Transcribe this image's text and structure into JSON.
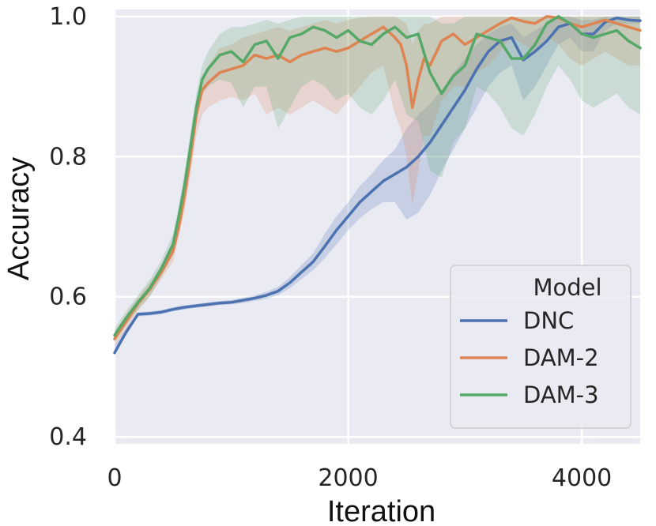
{
  "chart_data": {
    "type": "line",
    "xlabel": "Iteration",
    "ylabel": "Accuracy",
    "xlim": [
      0,
      4500
    ],
    "ylim": [
      0.39,
      1.01
    ],
    "xticks": [
      0,
      2000,
      4000
    ],
    "xtick_labels": [
      "0",
      "2000",
      "4000"
    ],
    "yticks": [
      0.4,
      0.6,
      0.8,
      1.0
    ],
    "ytick_labels": [
      "0.4",
      "0.6",
      "0.8",
      "1.0"
    ],
    "grid": true,
    "background": "#EAEAF2",
    "legend": {
      "title": "Model",
      "position": "bottom-right",
      "entries": [
        "DNC",
        "DAM-2",
        "DAM-3"
      ]
    },
    "series": [
      {
        "name": "DNC",
        "color": "#4C72B0",
        "x": [
          0,
          100,
          200,
          300,
          400,
          500,
          600,
          700,
          800,
          900,
          1000,
          1100,
          1200,
          1300,
          1400,
          1500,
          1600,
          1700,
          1800,
          1900,
          2000,
          2100,
          2200,
          2300,
          2400,
          2500,
          2600,
          2700,
          2800,
          2900,
          3000,
          3100,
          3200,
          3300,
          3400,
          3500,
          3600,
          3700,
          3800,
          3900,
          4000,
          4100,
          4200,
          4300,
          4400,
          4500
        ],
        "y": [
          0.52,
          0.55,
          0.575,
          0.576,
          0.578,
          0.582,
          0.585,
          0.587,
          0.589,
          0.591,
          0.592,
          0.595,
          0.598,
          0.602,
          0.608,
          0.62,
          0.635,
          0.65,
          0.672,
          0.695,
          0.715,
          0.735,
          0.75,
          0.765,
          0.775,
          0.785,
          0.8,
          0.82,
          0.845,
          0.87,
          0.895,
          0.925,
          0.95,
          0.965,
          0.97,
          0.938,
          0.95,
          0.965,
          0.985,
          0.99,
          0.975,
          0.975,
          0.992,
          0.998,
          0.995,
          0.994
        ],
        "band_lo": [
          0.52,
          0.545,
          0.572,
          0.573,
          0.575,
          0.579,
          0.582,
          0.584,
          0.586,
          0.588,
          0.589,
          0.591,
          0.594,
          0.597,
          0.602,
          0.612,
          0.625,
          0.638,
          0.655,
          0.675,
          0.695,
          0.712,
          0.725,
          0.735,
          0.735,
          0.71,
          0.72,
          0.745,
          0.78,
          0.81,
          0.84,
          0.87,
          0.9,
          0.92,
          0.93,
          0.88,
          0.9,
          0.93,
          0.96,
          0.97,
          0.95,
          0.95,
          0.98,
          0.99,
          0.99,
          0.99
        ],
        "band_hi": [
          0.53,
          0.555,
          0.578,
          0.579,
          0.581,
          0.585,
          0.588,
          0.59,
          0.592,
          0.594,
          0.595,
          0.599,
          0.602,
          0.607,
          0.614,
          0.628,
          0.645,
          0.662,
          0.69,
          0.715,
          0.735,
          0.758,
          0.775,
          0.795,
          0.81,
          0.84,
          0.86,
          0.875,
          0.895,
          0.92,
          0.94,
          0.96,
          0.975,
          0.985,
          0.99,
          0.97,
          0.98,
          0.99,
          1.0,
          1.0,
          0.995,
          0.995,
          1.0,
          1.0,
          1.0,
          1.0
        ]
      },
      {
        "name": "DAM-2",
        "color": "#DD8452",
        "x": [
          0,
          100,
          200,
          300,
          400,
          500,
          550,
          600,
          650,
          700,
          750,
          800,
          900,
          1000,
          1100,
          1200,
          1300,
          1400,
          1500,
          1600,
          1700,
          1800,
          1900,
          2000,
          2100,
          2200,
          2300,
          2400,
          2450,
          2500,
          2550,
          2600,
          2650,
          2700,
          2800,
          2900,
          3000,
          3100,
          3200,
          3300,
          3400,
          3500,
          3600,
          3700,
          3800,
          3900,
          4000,
          4100,
          4200,
          4300,
          4400,
          4500
        ],
        "y": [
          0.54,
          0.565,
          0.59,
          0.61,
          0.635,
          0.665,
          0.7,
          0.745,
          0.8,
          0.86,
          0.895,
          0.905,
          0.92,
          0.925,
          0.93,
          0.945,
          0.94,
          0.945,
          0.935,
          0.945,
          0.95,
          0.955,
          0.95,
          0.955,
          0.965,
          0.975,
          0.985,
          0.97,
          0.96,
          0.93,
          0.87,
          0.91,
          0.94,
          0.93,
          0.965,
          0.975,
          0.96,
          0.97,
          0.98,
          0.99,
          0.998,
          0.993,
          0.99,
          1.0,
          0.998,
          0.99,
          0.985,
          0.99,
          0.995,
          0.99,
          0.985,
          0.98
        ],
        "band_lo": [
          0.53,
          0.555,
          0.58,
          0.6,
          0.625,
          0.65,
          0.685,
          0.725,
          0.775,
          0.83,
          0.86,
          0.87,
          0.88,
          0.885,
          0.88,
          0.89,
          0.86,
          0.87,
          0.86,
          0.87,
          0.88,
          0.87,
          0.86,
          0.88,
          0.9,
          0.92,
          0.93,
          0.86,
          0.84,
          0.8,
          0.73,
          0.78,
          0.83,
          0.83,
          0.88,
          0.9,
          0.9,
          0.92,
          0.93,
          0.95,
          0.97,
          0.96,
          0.95,
          0.97,
          0.96,
          0.94,
          0.93,
          0.94,
          0.95,
          0.94,
          0.93,
          0.93
        ],
        "band_hi": [
          0.55,
          0.575,
          0.6,
          0.62,
          0.645,
          0.68,
          0.715,
          0.76,
          0.82,
          0.88,
          0.915,
          0.93,
          0.955,
          0.96,
          0.97,
          0.975,
          0.98,
          0.985,
          0.98,
          0.985,
          0.99,
          0.995,
          0.99,
          0.995,
          0.998,
          1.0,
          1.0,
          1.0,
          0.995,
          0.99,
          0.96,
          0.98,
          0.99,
          0.99,
          1.0,
          1.0,
          1.0,
          1.0,
          1.0,
          1.0,
          1.0,
          1.0,
          1.0,
          1.0,
          1.0,
          1.0,
          1.0,
          1.0,
          1.0,
          1.0,
          1.0,
          1.0
        ]
      },
      {
        "name": "DAM-3",
        "color": "#55A868",
        "x": [
          0,
          100,
          200,
          300,
          400,
          500,
          550,
          600,
          650,
          700,
          750,
          800,
          900,
          1000,
          1100,
          1200,
          1300,
          1400,
          1500,
          1600,
          1700,
          1800,
          1900,
          2000,
          2100,
          2200,
          2300,
          2400,
          2500,
          2600,
          2700,
          2800,
          2900,
          3000,
          3100,
          3200,
          3300,
          3400,
          3500,
          3600,
          3700,
          3800,
          3900,
          4000,
          4100,
          4200,
          4300,
          4400,
          4500
        ],
        "y": [
          0.545,
          0.57,
          0.592,
          0.612,
          0.64,
          0.675,
          0.715,
          0.76,
          0.815,
          0.87,
          0.91,
          0.925,
          0.945,
          0.95,
          0.935,
          0.96,
          0.965,
          0.94,
          0.97,
          0.975,
          0.985,
          0.98,
          0.97,
          0.98,
          0.965,
          0.96,
          0.975,
          0.985,
          0.97,
          0.975,
          0.92,
          0.89,
          0.915,
          0.93,
          0.975,
          0.97,
          0.965,
          0.94,
          0.94,
          0.96,
          0.99,
          1.0,
          0.99,
          0.975,
          0.97,
          0.975,
          0.98,
          0.965,
          0.955
        ],
        "band_lo": [
          0.535,
          0.56,
          0.582,
          0.6,
          0.628,
          0.66,
          0.7,
          0.74,
          0.795,
          0.85,
          0.89,
          0.9,
          0.91,
          0.905,
          0.87,
          0.9,
          0.9,
          0.84,
          0.87,
          0.9,
          0.91,
          0.9,
          0.88,
          0.89,
          0.87,
          0.86,
          0.88,
          0.91,
          0.86,
          0.85,
          0.78,
          0.77,
          0.82,
          0.84,
          0.9,
          0.89,
          0.87,
          0.84,
          0.83,
          0.86,
          0.9,
          0.93,
          0.91,
          0.88,
          0.87,
          0.88,
          0.89,
          0.87,
          0.86
        ],
        "band_hi": [
          0.555,
          0.58,
          0.602,
          0.624,
          0.652,
          0.69,
          0.73,
          0.78,
          0.835,
          0.89,
          0.93,
          0.95,
          0.975,
          0.985,
          0.985,
          0.99,
          0.995,
          0.99,
          0.995,
          1.0,
          1.0,
          1.0,
          1.0,
          1.0,
          1.0,
          1.0,
          1.0,
          1.0,
          1.0,
          1.0,
          1.0,
          0.99,
          0.99,
          1.0,
          1.0,
          1.0,
          1.0,
          1.0,
          1.0,
          1.0,
          1.0,
          1.0,
          1.0,
          1.0,
          1.0,
          1.0,
          1.0,
          1.0,
          1.0
        ]
      }
    ]
  }
}
